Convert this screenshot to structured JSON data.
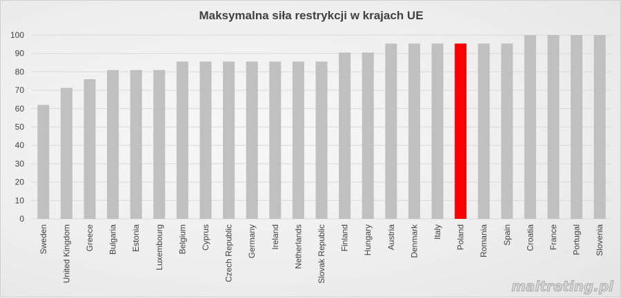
{
  "chart_data": {
    "type": "bar",
    "title": "Maksymalna siła restrykcji w krajach UE",
    "xlabel": "",
    "ylabel": "",
    "ylim": [
      0,
      100
    ],
    "yticks": [
      "0",
      "10",
      "20",
      "30",
      "40",
      "50",
      "60",
      "70",
      "80",
      "90",
      "100"
    ],
    "grid": true,
    "legend": "none",
    "categories": [
      "Sweden",
      "United Kingdom",
      "Greece",
      "Bulgaria",
      "Estonia",
      "Luxembourg",
      "Belgium",
      "Cyprus",
      "Czech Republic",
      "Germany",
      "Ireland",
      "Netherlands",
      "Slovak Republic",
      "Finland",
      "Hungary",
      "Austria",
      "Denmark",
      "Italy",
      "Poland",
      "Romania",
      "Spain",
      "Croatia",
      "France",
      "Portugal",
      "Slovenia"
    ],
    "values": [
      62,
      71.3,
      76,
      81,
      81,
      81,
      85.6,
      85.6,
      85.6,
      85.6,
      85.6,
      85.6,
      85.6,
      90.5,
      90.5,
      95.4,
      95.4,
      95.4,
      95.4,
      95.4,
      95.4,
      100,
      100,
      100,
      100
    ],
    "colors": {
      "bar": "#c0c0c0",
      "highlight": "#ff0000"
    },
    "highlight_category": "Poland"
  },
  "watermark": "maltreting.pl"
}
